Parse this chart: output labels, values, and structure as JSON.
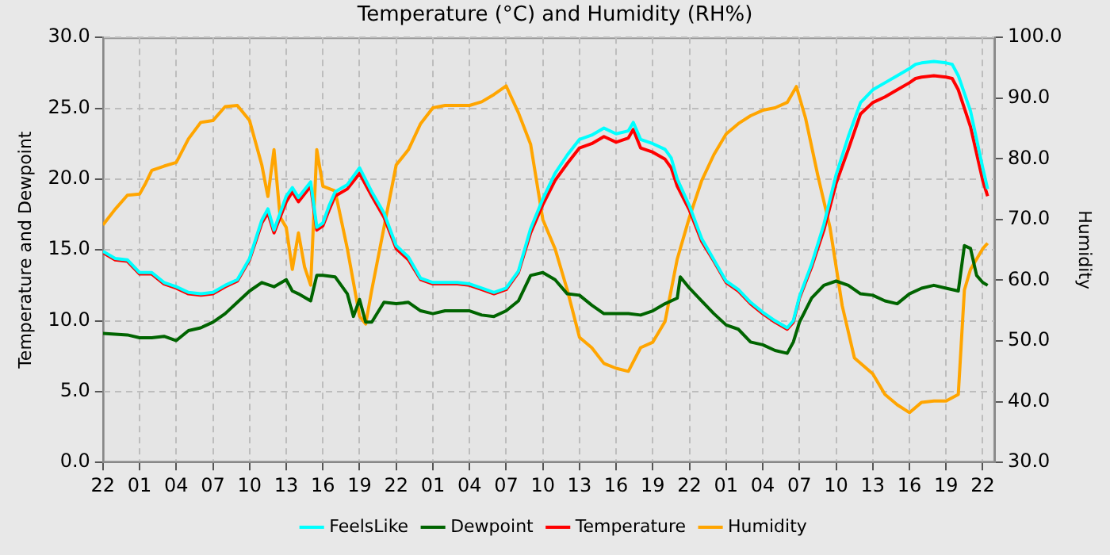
{
  "chart_data": {
    "type": "line",
    "title": "Temperature (°C) and Humidity (RH%)",
    "ylabel": "Temperature and Dewpoint",
    "y2label": "Humidity",
    "xlim": [
      "--01-01T22:00",
      "--01-04T23:00"
    ],
    "xticks": [
      {
        "value": "--01-01T22:00",
        "label": "22"
      },
      {
        "value": "--01-02T01:00",
        "label": "01"
      },
      {
        "value": "--01-02T04:00",
        "label": "04"
      },
      {
        "value": "--01-02T07:00",
        "label": "07"
      },
      {
        "value": "--01-02T10:00",
        "label": "10"
      },
      {
        "value": "--01-02T13:00",
        "label": "13"
      },
      {
        "value": "--01-02T16:00",
        "label": "16"
      },
      {
        "value": "--01-02T19:00",
        "label": "19"
      },
      {
        "value": "--01-02T22:00",
        "label": "22"
      },
      {
        "value": "--01-03T01:00",
        "label": "01"
      },
      {
        "value": "--01-03T04:00",
        "label": "04"
      },
      {
        "value": "--01-03T07:00",
        "label": "07"
      },
      {
        "value": "--01-03T10:00",
        "label": "10"
      },
      {
        "value": "--01-03T13:00",
        "label": "13"
      },
      {
        "value": "--01-03T16:00",
        "label": "16"
      },
      {
        "value": "--01-03T19:00",
        "label": "19"
      },
      {
        "value": "--01-03T22:00",
        "label": "22"
      },
      {
        "value": "--01-04T01:00",
        "label": "01"
      },
      {
        "value": "--01-04T04:00",
        "label": "04"
      },
      {
        "value": "--01-04T07:00",
        "label": "07"
      },
      {
        "value": "--01-04T10:00",
        "label": "10"
      },
      {
        "value": "--01-04T13:00",
        "label": "13"
      },
      {
        "value": "--01-04T16:00",
        "label": "16"
      },
      {
        "value": "--01-04T19:00",
        "label": "19"
      },
      {
        "value": "--01-04T22:00",
        "label": "22"
      }
    ],
    "ylim": [
      0,
      30
    ],
    "yticks": [
      {
        "value": 0,
        "label": "0.0"
      },
      {
        "value": 5,
        "label": "5.0"
      },
      {
        "value": 10,
        "label": "10.0"
      },
      {
        "value": 15,
        "label": "15.0"
      },
      {
        "value": 20,
        "label": "20.0"
      },
      {
        "value": 25,
        "label": "25.0"
      },
      {
        "value": 30,
        "label": "30.0"
      }
    ],
    "y2lim": [
      30,
      100
    ],
    "y2ticks": [
      {
        "value": 30,
        "label": "30.0"
      },
      {
        "value": 40,
        "label": "40.0"
      },
      {
        "value": 50,
        "label": "50.0"
      },
      {
        "value": 60,
        "label": "60.0"
      },
      {
        "value": 70,
        "label": "70.0"
      },
      {
        "value": 80,
        "label": "80.0"
      },
      {
        "value": 90,
        "label": "90.0"
      },
      {
        "value": 100,
        "label": "100.0"
      }
    ],
    "grid": true,
    "legend": "bottom",
    "marker": "none",
    "line_style": "solid",
    "series": [
      {
        "name": "FeelsLike",
        "color": "#00ffff",
        "x": [
          "--01-01T22:00",
          "--01-01T23:00",
          "--01-02T00:00",
          "--01-02T01:00",
          "--01-02T02:00",
          "--01-02T03:00",
          "--01-02T04:00",
          "--01-02T05:00",
          "--01-02T06:00",
          "--01-02T07:00",
          "--01-02T08:00",
          "--01-02T09:00",
          "--01-02T10:00",
          "--01-02T11:00",
          "--01-02T11:30",
          "--01-02T12:00",
          "--01-02T13:00",
          "--01-02T13:30",
          "--01-02T14:00",
          "--01-02T15:00",
          "--01-02T15:30",
          "--01-02T16:00",
          "--01-02T16:30",
          "--01-02T17:00",
          "--01-02T18:00",
          "--01-02T19:00",
          "--01-02T20:00",
          "--01-02T21:00",
          "--01-02T22:00",
          "--01-02T23:00",
          "--01-03T00:00",
          "--01-03T01:00",
          "--01-03T02:00",
          "--01-03T03:00",
          "--01-03T04:00",
          "--01-03T05:00",
          "--01-03T06:00",
          "--01-03T07:00",
          "--01-03T08:00",
          "--01-03T09:00",
          "--01-03T10:00",
          "--01-03T11:00",
          "--01-03T12:00",
          "--01-03T13:00",
          "--01-03T14:00",
          "--01-03T15:00",
          "--01-03T16:00",
          "--01-03T17:00",
          "--01-03T17:24",
          "--01-03T18:00",
          "--01-03T19:00",
          "--01-03T20:00",
          "--01-03T20:30",
          "--01-03T21:00",
          "--01-03T22:00",
          "--01-03T23:00",
          "--01-04T00:00",
          "--01-04T01:00",
          "--01-04T02:00",
          "--01-04T03:00",
          "--01-04T04:00",
          "--01-04T05:00",
          "--01-04T06:00",
          "--01-04T06:30",
          "--01-04T07:00",
          "--01-04T08:00",
          "--01-04T09:00",
          "--01-04T10:00",
          "--01-04T11:00",
          "--01-04T12:00",
          "--01-04T13:00",
          "--01-04T14:00",
          "--01-04T15:00",
          "--01-04T16:00",
          "--01-04T16:30",
          "--01-04T17:00",
          "--01-04T18:00",
          "--01-04T19:00",
          "--01-04T19:30",
          "--01-04T20:00",
          "--01-04T21:00",
          "--01-04T22:00",
          "--01-04T22:24"
        ],
        "values": [
          14.9,
          14.4,
          14.3,
          13.4,
          13.4,
          12.7,
          12.4,
          12.0,
          11.9,
          12.0,
          12.5,
          12.9,
          14.4,
          17.1,
          17.9,
          16.4,
          18.8,
          19.4,
          18.7,
          19.8,
          16.6,
          16.9,
          18.1,
          19.1,
          19.6,
          20.8,
          19.1,
          17.6,
          15.3,
          14.5,
          13.0,
          12.7,
          12.7,
          12.7,
          12.6,
          12.3,
          12.0,
          12.3,
          13.5,
          16.5,
          18.6,
          20.4,
          21.7,
          22.8,
          23.1,
          23.6,
          23.2,
          23.4,
          24.0,
          22.8,
          22.5,
          22.1,
          21.5,
          20.0,
          18.1,
          15.8,
          14.3,
          12.8,
          12.2,
          11.3,
          10.6,
          10.0,
          9.5,
          10.0,
          11.7,
          14.0,
          16.8,
          20.3,
          23.0,
          25.4,
          26.3,
          26.8,
          27.3,
          27.8,
          28.1,
          28.2,
          28.3,
          28.2,
          28.1,
          27.3,
          24.8,
          20.8,
          19.3
        ]
      },
      {
        "name": "Dewpoint",
        "color": "#006400",
        "x": [
          "--01-01T22:00",
          "--01-02T00:00",
          "--01-02T01:00",
          "--01-02T02:00",
          "--01-02T03:00",
          "--01-02T04:00",
          "--01-02T05:00",
          "--01-02T06:00",
          "--01-02T07:00",
          "--01-02T08:00",
          "--01-02T09:00",
          "--01-02T10:00",
          "--01-02T11:00",
          "--01-02T12:00",
          "--01-02T13:00",
          "--01-02T13:30",
          "--01-02T14:00",
          "--01-02T15:00",
          "--01-02T15:30",
          "--01-02T16:00",
          "--01-02T17:00",
          "--01-02T18:00",
          "--01-02T18:30",
          "--01-02T19:00",
          "--01-02T19:30",
          "--01-02T20:00",
          "--01-02T21:00",
          "--01-02T22:00",
          "--01-02T23:00",
          "--01-03T00:00",
          "--01-03T01:00",
          "--01-03T02:00",
          "--01-03T03:00",
          "--01-03T04:00",
          "--01-03T05:00",
          "--01-03T06:00",
          "--01-03T07:00",
          "--01-03T08:00",
          "--01-03T09:00",
          "--01-03T10:00",
          "--01-03T11:00",
          "--01-03T12:00",
          "--01-03T13:00",
          "--01-03T14:00",
          "--01-03T15:00",
          "--01-03T16:00",
          "--01-03T17:00",
          "--01-03T18:00",
          "--01-03T19:00",
          "--01-03T20:00",
          "--01-03T21:00",
          "--01-03T21:15",
          "--01-03T22:00",
          "--01-03T23:00",
          "--01-04T00:00",
          "--01-04T01:00",
          "--01-04T02:00",
          "--01-04T03:00",
          "--01-04T04:00",
          "--01-04T05:00",
          "--01-04T06:00",
          "--01-04T06:30",
          "--01-04T07:00",
          "--01-04T08:00",
          "--01-04T09:00",
          "--01-04T10:00",
          "--01-04T11:00",
          "--01-04T12:00",
          "--01-04T13:00",
          "--01-04T14:00",
          "--01-04T15:00",
          "--01-04T16:00",
          "--01-04T17:00",
          "--01-04T18:00",
          "--01-04T19:00",
          "--01-04T20:00",
          "--01-04T20:30",
          "--01-04T21:00",
          "--01-04T21:30",
          "--01-04T22:00",
          "--01-04T22:24"
        ],
        "values": [
          9.1,
          9.0,
          8.8,
          8.8,
          8.9,
          8.6,
          9.3,
          9.5,
          9.9,
          10.5,
          11.3,
          12.1,
          12.7,
          12.4,
          12.9,
          12.1,
          11.9,
          11.4,
          13.2,
          13.2,
          13.1,
          11.9,
          10.3,
          11.5,
          9.9,
          9.9,
          11.3,
          11.2,
          11.3,
          10.7,
          10.5,
          10.7,
          10.7,
          10.7,
          10.4,
          10.3,
          10.7,
          11.4,
          13.2,
          13.4,
          12.9,
          11.9,
          11.8,
          11.1,
          10.5,
          10.5,
          10.5,
          10.4,
          10.7,
          11.2,
          11.6,
          13.1,
          12.3,
          11.4,
          10.5,
          9.7,
          9.4,
          8.5,
          8.3,
          7.9,
          7.7,
          8.5,
          9.9,
          11.6,
          12.5,
          12.8,
          12.5,
          11.9,
          11.8,
          11.4,
          11.2,
          11.9,
          12.3,
          12.5,
          12.3,
          12.1,
          15.3,
          15.1,
          13.2,
          12.7,
          12.5
        ]
      },
      {
        "name": "Temperature",
        "color": "#ff0000",
        "x": [
          "--01-01T22:00",
          "--01-01T23:00",
          "--01-02T00:00",
          "--01-02T01:00",
          "--01-02T02:00",
          "--01-02T03:00",
          "--01-02T04:00",
          "--01-02T05:00",
          "--01-02T06:00",
          "--01-02T07:00",
          "--01-02T08:00",
          "--01-02T09:00",
          "--01-02T10:00",
          "--01-02T11:00",
          "--01-02T11:30",
          "--01-02T12:00",
          "--01-02T13:00",
          "--01-02T13:30",
          "--01-02T14:00",
          "--01-02T15:00",
          "--01-02T15:30",
          "--01-02T16:00",
          "--01-02T16:30",
          "--01-02T17:00",
          "--01-02T18:00",
          "--01-02T19:00",
          "--01-02T20:00",
          "--01-02T21:00",
          "--01-02T22:00",
          "--01-02T23:00",
          "--01-03T00:00",
          "--01-03T01:00",
          "--01-03T02:00",
          "--01-03T03:00",
          "--01-03T04:00",
          "--01-03T05:00",
          "--01-03T06:00",
          "--01-03T07:00",
          "--01-03T08:00",
          "--01-03T09:00",
          "--01-03T10:00",
          "--01-03T11:00",
          "--01-03T12:00",
          "--01-03T13:00",
          "--01-03T14:00",
          "--01-03T15:00",
          "--01-03T16:00",
          "--01-03T17:00",
          "--01-03T17:24",
          "--01-03T18:00",
          "--01-03T19:00",
          "--01-03T20:00",
          "--01-03T20:30",
          "--01-03T21:00",
          "--01-03T22:00",
          "--01-03T23:00",
          "--01-04T00:00",
          "--01-04T01:00",
          "--01-04T02:00",
          "--01-04T03:00",
          "--01-04T04:00",
          "--01-04T05:00",
          "--01-04T06:00",
          "--01-04T06:30",
          "--01-04T07:00",
          "--01-04T08:00",
          "--01-04T09:00",
          "--01-04T10:00",
          "--01-04T11:00",
          "--01-04T12:00",
          "--01-04T13:00",
          "--01-04T14:00",
          "--01-04T15:00",
          "--01-04T16:00",
          "--01-04T16:30",
          "--01-04T17:00",
          "--01-04T18:00",
          "--01-04T19:00",
          "--01-04T19:30",
          "--01-04T20:00",
          "--01-04T21:00",
          "--01-04T22:00",
          "--01-04T22:24"
        ],
        "values": [
          14.8,
          14.3,
          14.2,
          13.3,
          13.3,
          12.6,
          12.3,
          11.9,
          11.8,
          11.9,
          12.4,
          12.8,
          14.3,
          16.9,
          17.6,
          16.2,
          18.4,
          19.1,
          18.4,
          19.5,
          16.4,
          16.7,
          17.8,
          18.8,
          19.3,
          20.4,
          18.8,
          17.3,
          15.1,
          14.3,
          12.9,
          12.6,
          12.6,
          12.6,
          12.5,
          12.2,
          11.9,
          12.2,
          13.4,
          16.2,
          18.2,
          19.9,
          21.1,
          22.2,
          22.5,
          23.0,
          22.6,
          22.9,
          23.5,
          22.2,
          21.9,
          21.4,
          20.8,
          19.5,
          17.8,
          15.6,
          14.2,
          12.7,
          12.1,
          11.2,
          10.5,
          9.9,
          9.4,
          9.9,
          11.6,
          13.8,
          16.4,
          19.7,
          22.1,
          24.6,
          25.4,
          25.8,
          26.3,
          26.8,
          27.1,
          27.2,
          27.3,
          27.2,
          27.1,
          26.3,
          23.7,
          19.9,
          18.8
        ]
      },
      {
        "name": "Humidity",
        "color": "#ffa500",
        "axis": "y2",
        "x": [
          "--01-01T22:00",
          "--01-01T23:00",
          "--01-02T00:00",
          "--01-02T01:00",
          "--01-02T01:30",
          "--01-02T02:00",
          "--01-02T03:00",
          "--01-02T04:00",
          "--01-02T05:00",
          "--01-02T06:00",
          "--01-02T07:00",
          "--01-02T08:00",
          "--01-02T09:00",
          "--01-02T10:00",
          "--01-02T11:00",
          "--01-02T11:30",
          "--01-02T12:00",
          "--01-02T12:30",
          "--01-02T13:00",
          "--01-02T13:30",
          "--01-02T14:00",
          "--01-02T14:30",
          "--01-02T15:00",
          "--01-02T15:30",
          "--01-02T16:00",
          "--01-02T17:00",
          "--01-02T18:00",
          "--01-02T19:00",
          "--01-02T19:30",
          "--01-02T20:00",
          "--01-02T21:00",
          "--01-02T22:00",
          "--01-02T23:00",
          "--01-03T00:00",
          "--01-03T01:00",
          "--01-03T02:00",
          "--01-03T03:00",
          "--01-03T04:00",
          "--01-03T05:00",
          "--01-03T06:00",
          "--01-03T07:00",
          "--01-03T08:00",
          "--01-03T09:00",
          "--01-03T10:00",
          "--01-03T11:00",
          "--01-03T12:00",
          "--01-03T13:00",
          "--01-03T14:00",
          "--01-03T15:00",
          "--01-03T16:00",
          "--01-03T17:00",
          "--01-03T18:00",
          "--01-03T19:00",
          "--01-03T20:00",
          "--01-03T21:00",
          "--01-03T22:00",
          "--01-03T23:00",
          "--01-04T00:00",
          "--01-04T01:00",
          "--01-04T02:00",
          "--01-04T03:00",
          "--01-04T04:00",
          "--01-04T05:00",
          "--01-04T06:00",
          "--01-04T06:45",
          "--01-04T07:30",
          "--01-04T08:30",
          "--01-04T09:30",
          "--01-04T10:30",
          "--01-04T11:30",
          "--01-04T13:00",
          "--01-04T14:00",
          "--01-04T15:00",
          "--01-04T16:00",
          "--01-04T17:00",
          "--01-04T18:00",
          "--01-04T19:00",
          "--01-04T20:00",
          "--01-04T20:30",
          "--01-04T21:00",
          "--01-04T22:00",
          "--01-04T22:24"
        ],
        "values": [
          69.1,
          71.7,
          74.0,
          74.2,
          76.0,
          78.1,
          78.8,
          79.4,
          83.3,
          86.0,
          86.3,
          88.6,
          88.8,
          86.3,
          79.0,
          73.8,
          81.5,
          70.4,
          68.7,
          61.8,
          67.8,
          62.2,
          59.2,
          81.5,
          75.5,
          74.7,
          65.2,
          54.1,
          52.8,
          58.4,
          68.7,
          79.0,
          81.5,
          85.8,
          88.4,
          88.8,
          88.8,
          88.8,
          89.4,
          90.6,
          92.0,
          87.6,
          82.4,
          70.0,
          65.2,
          58.4,
          50.6,
          48.9,
          46.3,
          45.5,
          45.0,
          48.9,
          49.8,
          53.2,
          63.5,
          70.4,
          76.4,
          80.7,
          84.1,
          85.8,
          87.1,
          88.0,
          88.4,
          89.3,
          91.9,
          86.7,
          77.3,
          68.7,
          55.8,
          47.2,
          44.6,
          41.2,
          39.5,
          38.2,
          39.9,
          40.1,
          40.1,
          41.2,
          58.4,
          61.8,
          65.2,
          66.1
        ]
      }
    ]
  }
}
